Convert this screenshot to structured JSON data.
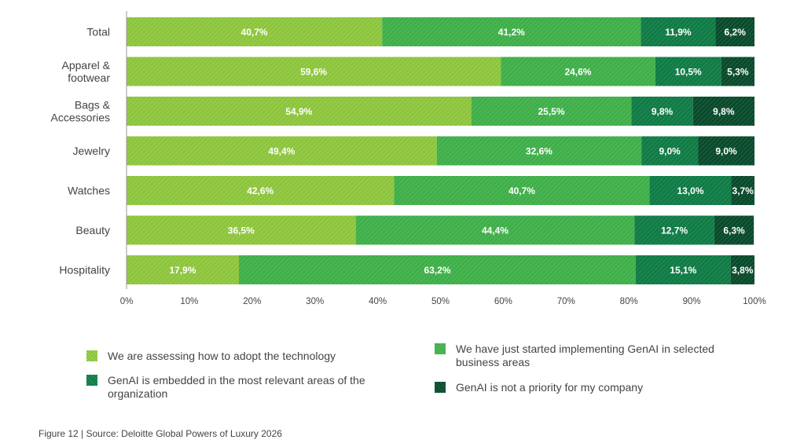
{
  "chart_data": {
    "type": "bar",
    "orientation": "horizontal",
    "stacked": true,
    "categories": [
      "Total",
      "Apparel &\nfootwear",
      "Bags &\nAccessories",
      "Jewelry",
      "Watches",
      "Beauty",
      "Hospitality"
    ],
    "series": [
      {
        "name": "We are assessing how to adopt the technology",
        "color": "#8cc43c",
        "stripe": "#a5d45f",
        "values": [
          40.7,
          59.6,
          54.9,
          49.4,
          42.6,
          36.5,
          17.9
        ],
        "labels": [
          "40,7%",
          "59,6%",
          "54,9%",
          "49,4%",
          "42,6%",
          "36,5%",
          "17,9%"
        ]
      },
      {
        "name": "We have just started implementing GenAI in selected business areas",
        "color": "#3fae49",
        "stripe": "#5cc065",
        "values": [
          41.2,
          24.6,
          25.5,
          32.6,
          40.7,
          44.4,
          63.2
        ],
        "labels": [
          "41,2%",
          "24,6%",
          "25,5%",
          "32,6%",
          "40,7%",
          "44,4%",
          "63,2%"
        ]
      },
      {
        "name": "GenAI is embedded in the most relevant areas of the organization",
        "color": "#117a45",
        "stripe": "#2a9460",
        "values": [
          11.9,
          10.5,
          9.8,
          9.0,
          13.0,
          12.7,
          15.1
        ],
        "labels": [
          "11,9%",
          "10,5%",
          "9,8%",
          "9,0%",
          "13,0%",
          "12,7%",
          "15,1%"
        ]
      },
      {
        "name": "GenAI is not a priority for my company",
        "color": "#0a4a2c",
        "stripe": "#2a6a4a",
        "values": [
          6.2,
          5.3,
          9.8,
          9.0,
          3.7,
          6.3,
          3.8
        ],
        "labels": [
          "6,2%",
          "5,3%",
          "9,8%",
          "9,0%",
          "3,7%",
          "6,3%",
          "3,8%"
        ]
      }
    ],
    "xlim": [
      0,
      100
    ],
    "xticks": [
      "0%",
      "10%",
      "20%",
      "30%",
      "40%",
      "50%",
      "60%",
      "70%",
      "80%",
      "90%",
      "100%"
    ],
    "legend_position": "bottom",
    "grid": false
  },
  "footer": "Figure 12 | Source: Deloitte Global Powers of Luxury 2026"
}
